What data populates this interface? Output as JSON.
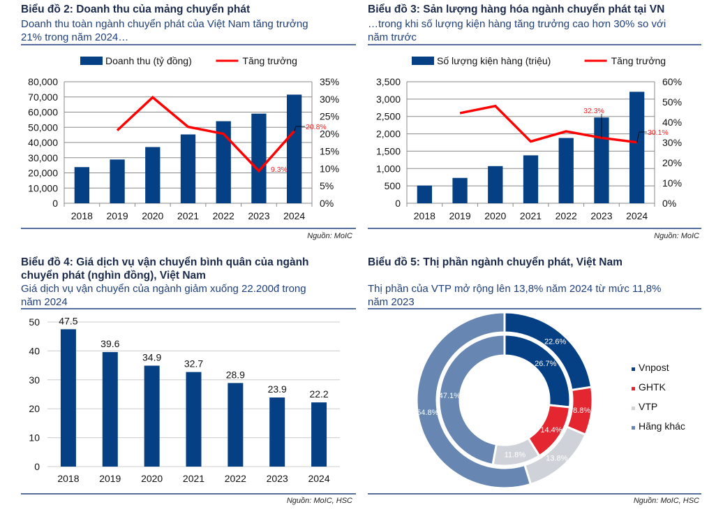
{
  "colors": {
    "bar": "#053f84",
    "line": "#ff0000",
    "label": "#ff1a1a",
    "title": "#1b2a4a",
    "subtitle": "#1f3f7a",
    "divider": "#1f3f7a"
  },
  "chart_data": [
    {
      "type": "bar+line",
      "title": "Biểu đồ 2: Doanh thu của mảng chuyển phát",
      "subtitle": [
        "Doanh thu toàn ngành chuyển phát của Việt Nam tăng trưởng",
        "21% trong năm 2024…"
      ],
      "categories": [
        "2018",
        "2019",
        "2020",
        "2021",
        "2022",
        "2023",
        "2024"
      ],
      "series": [
        {
          "name": "Doanh thu (tỷ đồng)",
          "type": "bar",
          "axis": "left",
          "values": [
            23800,
            28800,
            37000,
            45300,
            54000,
            59000,
            71500
          ]
        },
        {
          "name": "Tăng trưởng",
          "type": "line",
          "axis": "right",
          "values": [
            null,
            21.0,
            30.5,
            22.0,
            20.0,
            9.3,
            20.8
          ]
        }
      ],
      "left_ticks": [
        "0",
        "10,000",
        "20,000",
        "30,000",
        "40,000",
        "50,000",
        "60,000",
        "70,000",
        "80,000"
      ],
      "ylim": [
        0,
        80000
      ],
      "right_ticks": [
        "0%",
        "5%",
        "10%",
        "15%",
        "20%",
        "25%",
        "30%",
        "35%"
      ],
      "y2lim": [
        0,
        35
      ],
      "annotations": [
        "9.3%",
        "20.8%"
      ],
      "grid": true,
      "legend": "top",
      "source": "Nguồn: MoIC"
    },
    {
      "type": "bar+line",
      "title": "Biểu đồ 3: Sản lượng hàng hóa ngành chuyển phát tại VN",
      "subtitle": [
        "…trong khi số lượng kiện hàng tăng trưởng cao hơn 30% so với",
        "năm trước"
      ],
      "categories": [
        "2018",
        "2019",
        "2020",
        "2021",
        "2022",
        "2023",
        "2024"
      ],
      "series": [
        {
          "name": "Số lượng kiện hàng (triệu)",
          "type": "bar",
          "axis": "left",
          "values": [
            510,
            730,
            1070,
            1380,
            1880,
            2470,
            3210
          ]
        },
        {
          "name": "Tăng trưởng",
          "type": "line",
          "axis": "right",
          "values": [
            null,
            44.5,
            48.0,
            30.5,
            35.5,
            32.3,
            30.1
          ]
        }
      ],
      "left_ticks": [
        "0",
        "500",
        "1,000",
        "1,500",
        "2,000",
        "2,500",
        "3,000",
        "3,500"
      ],
      "ylim": [
        0,
        3500
      ],
      "right_ticks": [
        "0%",
        "10%",
        "20%",
        "30%",
        "40%",
        "50%",
        "60%"
      ],
      "y2lim": [
        0,
        60
      ],
      "annotations": [
        "32.3%",
        "30.1%"
      ],
      "grid": true,
      "legend": "top",
      "source": "Nguồn: MoIC"
    },
    {
      "type": "bar",
      "title": [
        "Biểu đồ 4: Giá dịch vụ vận chuyển bình quân của ngành",
        "chuyển phát (nghìn đồng), Việt Nam"
      ],
      "subtitle": [
        "Giá dịch vụ vận chuyển của ngành giảm xuống 22.200đ trong",
        "năm 2024"
      ],
      "categories": [
        "2018",
        "2019",
        "2020",
        "2021",
        "2022",
        "2023",
        "2024"
      ],
      "values": [
        47.5,
        39.6,
        34.9,
        32.7,
        28.9,
        23.9,
        22.2
      ],
      "data_labels": [
        "47.5",
        "39.6",
        "34.9",
        "32.7",
        "28.9",
        "23.9",
        "22.2"
      ],
      "ticks": [
        "0",
        "10",
        "20",
        "30",
        "40",
        "50"
      ],
      "ylim": [
        0,
        50
      ],
      "grid": true,
      "source": "Nguồn: MoIC, HSC"
    },
    {
      "type": "pie",
      "variant": "double-donut",
      "title": "Biểu đồ 5: Thị phần ngành chuyển phát, Việt Nam",
      "subtitle": [
        "Thị phần của VTP mở rộng lên 13,8% năm 2024 từ mức 11,8%",
        "năm 2023"
      ],
      "categories": [
        "Vnpost",
        "GHTK",
        "VTP",
        "Hãng khác"
      ],
      "slice_colors": [
        "#053f84",
        "#e3262f",
        "#cfd3d9",
        "#6787b2"
      ],
      "outer_values": [
        22.6,
        8.8,
        13.8,
        54.8
      ],
      "outer_labels": [
        "22.6%",
        "8.8%",
        "13.8%",
        "54.8%"
      ],
      "inner_values": [
        26.7,
        14.4,
        11.8,
        47.1
      ],
      "inner_labels": [
        "26.7%",
        "14.4%",
        "11.8%",
        "47.1%"
      ],
      "legend": "right",
      "source": "Nguồn: MoIC, HSC"
    }
  ]
}
